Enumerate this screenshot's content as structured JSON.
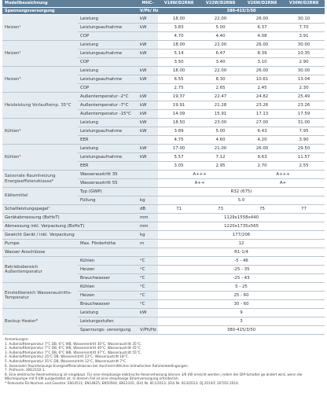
{
  "header": {
    "model_label": "Modellbezeichnung",
    "model_code": "MHC-",
    "models": [
      "V18W/D2RN8",
      "V22W/D2RN8",
      "V26W/D2RN8",
      "V30W/D2RN8"
    ],
    "supply_label": "Spannungsversorgung",
    "supply_unit": "V/Ph/ Hz",
    "supply_value": "380-415/3/50"
  },
  "perf_groups": [
    {
      "name": "Heizen¹",
      "rows": [
        {
          "param": "Leistung",
          "unit": "kW",
          "values": [
            "18.00",
            "22.00",
            "26.00",
            "30.10"
          ]
        },
        {
          "param": "Leistungsaufnahme",
          "unit": "kW",
          "values": [
            "3.83",
            "5.00",
            "6.37",
            "7.70"
          ]
        },
        {
          "param": "COP",
          "unit": "",
          "values": [
            "4.70",
            "4.40",
            "4.08",
            "3.91"
          ]
        }
      ]
    },
    {
      "name": "Heizen²",
      "rows": [
        {
          "param": "Leistung",
          "unit": "kW",
          "values": [
            "18.00",
            "22.00",
            "26.00",
            "30.00"
          ]
        },
        {
          "param": "Leistungsaufnahme",
          "unit": "kW",
          "values": [
            "5.14",
            "6.47",
            "8.39",
            "10.35"
          ]
        },
        {
          "param": "COP",
          "unit": "",
          "values": [
            "3.50",
            "3.40",
            "3.10",
            "2.90"
          ]
        }
      ]
    },
    {
      "name": "Heizen³",
      "rows": [
        {
          "param": "Leistung",
          "unit": "kW",
          "values": [
            "18.00",
            "22.00",
            "26.00",
            "30.00"
          ]
        },
        {
          "param": "Leistungsaufnahme",
          "unit": "kW",
          "values": [
            "6.55",
            "8.30",
            "10.61",
            "13.04"
          ]
        },
        {
          "param": "COP",
          "unit": "",
          "values": [
            "2.75",
            "2.65",
            "2.45",
            "2.30"
          ]
        }
      ]
    },
    {
      "name": "Heizleistung Vorlauftemp. 35°C",
      "rows": [
        {
          "param": "Außentemperatur -2°C",
          "unit": "kW",
          "values": [
            "19.37",
            "22.47",
            "24.82",
            "25.49"
          ]
        },
        {
          "param": "Außentemperatur -7°C",
          "unit": "kW",
          "values": [
            "19.91",
            "21.28",
            "23.26",
            "23.26"
          ]
        },
        {
          "param": "Außentemperatur -15°C",
          "unit": "kW",
          "values": [
            "14.09",
            "15.91",
            "17.13",
            "17.59"
          ]
        }
      ]
    },
    {
      "name": "Kühlen⁴",
      "rows": [
        {
          "param": "Leistung",
          "unit": "kW",
          "values": [
            "18.50",
            "23.00",
            "27.00",
            "31.00"
          ]
        },
        {
          "param": "Leistungsaufnahme",
          "unit": "kW",
          "values": [
            "3.89",
            "5.00",
            "6.43",
            "7.95"
          ]
        },
        {
          "param": "EER",
          "unit": "",
          "values": [
            "4.75",
            "4.60",
            "4.20",
            "3.90"
          ]
        }
      ]
    },
    {
      "name": "Kühlen⁵",
      "rows": [
        {
          "param": "Leistung",
          "unit": "kW",
          "values": [
            "17.00",
            "21.00",
            "26.00",
            "29.50"
          ]
        },
        {
          "param": "Leistungsaufnahme",
          "unit": "kW",
          "values": [
            "5.57",
            "7.12",
            "9.63",
            "11.57"
          ]
        },
        {
          "param": "EER",
          "unit": "",
          "values": [
            "3.05",
            "2.95",
            "2.70",
            "2.55"
          ]
        }
      ]
    }
  ],
  "seasonal": {
    "name": "Saisonale Raumheizung Energieeffizienzklasse⁶",
    "rows": [
      {
        "param": "Wasseraustritt 35",
        "a": "A+++",
        "b": "A+++"
      },
      {
        "param": "Wasseraustritt 55",
        "a": "A++",
        "b": "A+"
      }
    ]
  },
  "refrigerant": {
    "name": "Kältemittel",
    "rows": [
      {
        "param": "Typ (GWP)",
        "unit": "",
        "value": "R32 (675)"
      },
      {
        "param": "Füllung",
        "unit": "kg",
        "value": "5.0"
      }
    ]
  },
  "noise": {
    "name": "Schallleistungspegel⁷",
    "unit": "dB",
    "values": [
      "71",
      "73",
      "75",
      "77"
    ]
  },
  "dims": [
    {
      "name": "Gerätabmessung (BxHxT)",
      "unit": "mm",
      "value": "1129x1558x440"
    },
    {
      "name": "Abmessung inkl. Verpackung (BxHxT)",
      "unit": "mm",
      "value": "1220x1735x565"
    },
    {
      "name": "Gewicht Gerät / inkl. Verpackung",
      "unit": "kg",
      "value": "177/206"
    },
    {
      "name": "Pumpe",
      "param": "Max. Förderhöhe",
      "unit": "m",
      "value": "12"
    },
    {
      "name": "Wasser Anschlüsse",
      "unit": "",
      "value": "R1-1/4"
    }
  ],
  "op_range": {
    "name": "Betriebsbereich Außentemperatur",
    "rows": [
      {
        "param": "Kühlen",
        "unit": "°C",
        "value": "-5 - 46"
      },
      {
        "param": "Heizen",
        "unit": "°C",
        "value": "-25 - 35"
      },
      {
        "param": "Brauchwasser",
        "unit": "°C",
        "value": "-25 - 43"
      }
    ]
  },
  "set_range": {
    "name": "Einstellbereich Wasseraustritts-Temperatur",
    "rows": [
      {
        "param": "Kühlen",
        "unit": "°C",
        "value": "5 - 25"
      },
      {
        "param": "Heizen",
        "unit": "°C",
        "value": "25 - 60"
      },
      {
        "param": "Brauchwasser",
        "unit": "°C",
        "value": "30 - 60"
      }
    ]
  },
  "backup": {
    "name": "Backup Heater⁸",
    "rows": [
      {
        "param": "Leistung",
        "unit": "kW",
        "value": "9"
      },
      {
        "param": "Leistungsstufen",
        "unit": "",
        "value": "3"
      },
      {
        "param": "Spannungs- versorgung",
        "unit": "V/Ph/Hz",
        "value": "380-415/3/50"
      }
    ]
  },
  "notes": {
    "title": "Anmerkungen:",
    "items": [
      "1.  Außenlufttemperatur 7°C DB, 6°C WB, Wassereintritt 30°C, Wasseraustritt 35°C.",
      "2.  Außenlufttemperatur 7°C DB, 6°C WB, Wassereintritt 40°C, Wasseraustritt 45°C.",
      "3.  Außenlufttemperatur 7°C DB, 6°C WB, Wassereintritt 47°C, Wasseraustritt 55°C.",
      "4.  Außenlufttemperatur 35°C DB, Wassereintritt 23°C, Wasseraustritt 18°C.",
      "5.  Außenlufttemperatur 35°C DB, Wassereintritt 12°C, Wasseraustritt 7°C.",
      "6.  Saisonalen Raumheizungs-Energieeffizienzklassen bei durchschnittlichen klimatischen Rahmenbedingungen.",
      "7.  Prüfnorm: EN12102-1.",
      "8.  Eine elektrische Reserveheizung ist eingebaut. Für eine dreiphasige elektrische Reserveheizung können 3/6 kW erreicht werden, indem der DIP-Schalter ge ändert wird, wenn die Wärmepumpe mit 9 kW ausgestattet ist. In diesem Fall ist eine dreiphasige Stromversorgung erforderlich.",
      "* Relevante EU-Normen und Gesetze: EN14511; EN14825; EN50564; EN12102; (EU) Nr. 811/2013; (EU) Nr. 813/2013; OJ 2014/C 207/02:2014."
    ]
  }
}
